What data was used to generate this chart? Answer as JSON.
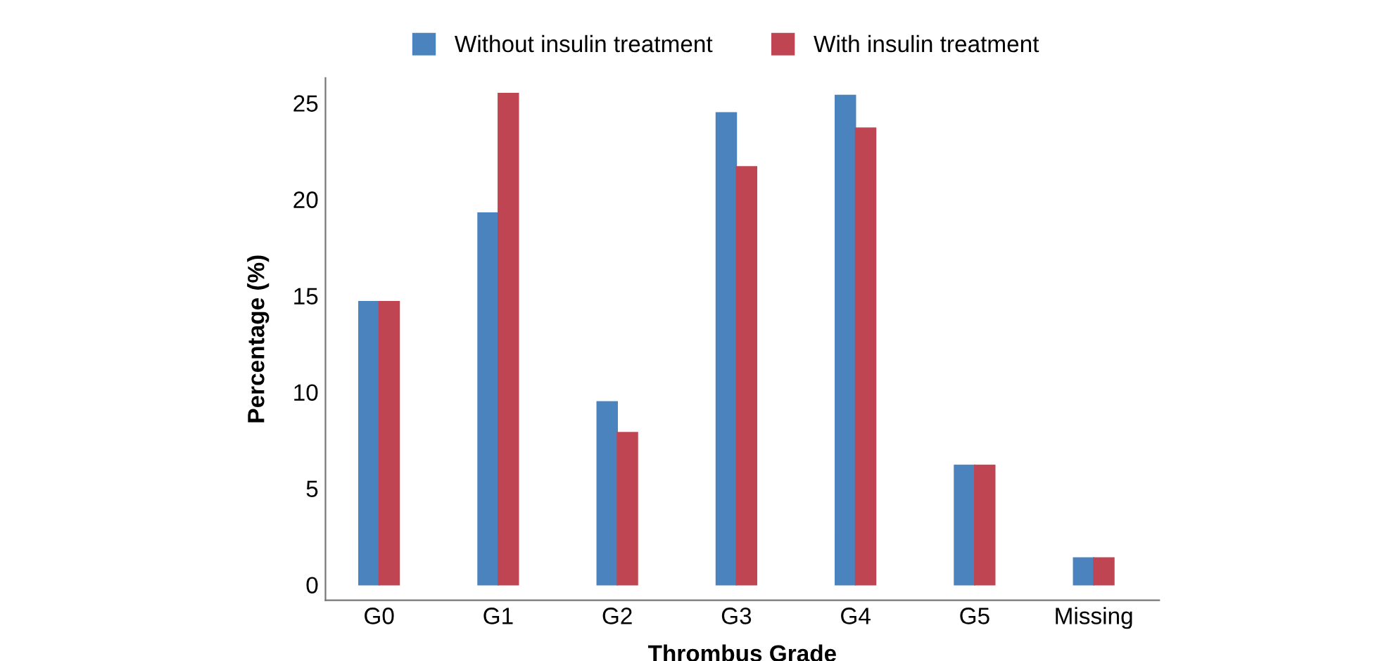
{
  "chart_data": {
    "type": "bar",
    "xlabel": "Thrombus Grade",
    "ylabel": "Percentage (%)",
    "categories": [
      "G0",
      "G1",
      "G2",
      "G3",
      "G4",
      "G5",
      "Missing"
    ],
    "series": [
      {
        "name": "Without insulin treatment",
        "color": "#4a83bd",
        "values": [
          14.7,
          19.3,
          9.5,
          24.5,
          25.4,
          6.2,
          1.4
        ]
      },
      {
        "name": "With insulin treatment",
        "color": "#c04552",
        "values": [
          14.7,
          25.5,
          7.9,
          21.7,
          23.7,
          6.2,
          1.4
        ]
      }
    ],
    "ylim": [
      -0.8,
      26.3
    ],
    "yticks": [
      0,
      5,
      10,
      15,
      20,
      25
    ],
    "grid": false,
    "legend": "top"
  }
}
